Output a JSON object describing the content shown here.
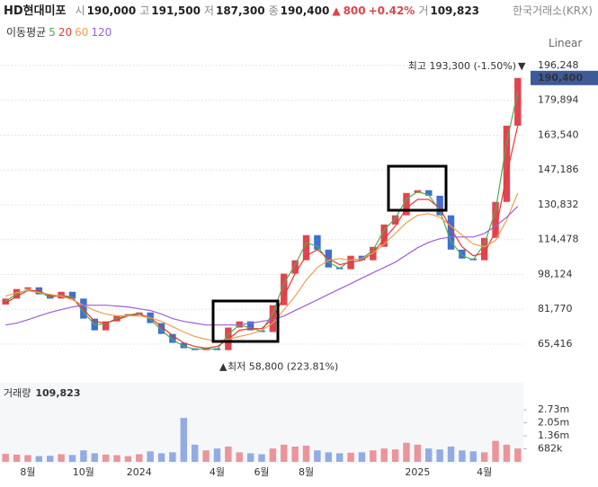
{
  "header": {
    "name": "HD현대미포",
    "items": [
      {
        "label": "시",
        "value": "190,000"
      },
      {
        "label": "고",
        "value": "191,500"
      },
      {
        "label": "저",
        "value": "187,300"
      },
      {
        "label": "종",
        "value": "190,400"
      }
    ],
    "change_arrow": "▲",
    "change": "800",
    "change_pct": "+0.42%",
    "volume_label": "거",
    "volume": "109,823",
    "exchange": "한국거래소(KRX)",
    "ma_title": "이동평균",
    "scale": "Linear"
  },
  "chart_data": [
    {
      "type": "candlestick",
      "categories": [
        null,
        null,
        "8월",
        null,
        null,
        null,
        null,
        "10월",
        null,
        null,
        null,
        null,
        "2024",
        null,
        null,
        null,
        null,
        null,
        null,
        "4월",
        null,
        null,
        null,
        "6월",
        null,
        null,
        null,
        "8월",
        null,
        null,
        null,
        null,
        null,
        null,
        null,
        null,
        null,
        "2025",
        null,
        null,
        null,
        null,
        null,
        "4월",
        null,
        null,
        null
      ],
      "open": [
        84000,
        86800,
        91300,
        92100,
        88800,
        86800,
        90000,
        86800,
        77400,
        71900,
        76100,
        78700,
        79500,
        80300,
        75300,
        70200,
        66000,
        63500,
        62600,
        63500,
        62600,
        73200,
        76100,
        71900,
        71100,
        83700,
        98500,
        104800,
        116600,
        109800,
        101400,
        100600,
        106900,
        104800,
        111100,
        121600,
        125900,
        136400,
        137700,
        135100,
        125900,
        109800,
        105600,
        104800,
        115300,
        132200,
        168000
      ],
      "close": [
        86800,
        91300,
        92100,
        88800,
        86800,
        90000,
        86800,
        77400,
        71900,
        76100,
        78700,
        79500,
        80300,
        75300,
        70200,
        66000,
        63500,
        62600,
        63500,
        62600,
        73200,
        76100,
        71900,
        71100,
        83700,
        98500,
        104800,
        116600,
        109800,
        101400,
        100600,
        106900,
        104800,
        111100,
        121600,
        125900,
        136400,
        137700,
        135100,
        125900,
        109800,
        105600,
        104800,
        115300,
        132200,
        168000,
        190400
      ],
      "up_color": "#e0454f",
      "down_color": "#3f6fd1",
      "series": [
        {
          "name": "5",
          "color": "#4caf50",
          "values": [
            85500,
            89000,
            91000,
            90000,
            87500,
            88500,
            87500,
            80500,
            74500,
            75000,
            77500,
            79000,
            80000,
            77000,
            72000,
            67500,
            64500,
            63000,
            63200,
            63000,
            70000,
            74500,
            73000,
            71500,
            80000,
            94000,
            102500,
            113000,
            111500,
            104000,
            101000,
            105000,
            105500,
            109500,
            119000,
            124500,
            133500,
            137000,
            135500,
            128000,
            113500,
            107000,
            105000,
            112500,
            128000,
            160000,
            184000
          ]
        },
        {
          "name": "20",
          "color": "#e53935",
          "values": [
            84600,
            87900,
            90500,
            90500,
            87900,
            87900,
            87100,
            81600,
            76100,
            75300,
            76900,
            78700,
            79500,
            77800,
            73600,
            69400,
            66000,
            64300,
            63500,
            64300,
            67700,
            71900,
            72700,
            72700,
            77400,
            87900,
            98500,
            106900,
            109800,
            105600,
            102700,
            103900,
            104800,
            108200,
            114900,
            120800,
            129300,
            133400,
            133400,
            129300,
            119500,
            111100,
            106900,
            108200,
            118300,
            144800,
            168000
          ]
        },
        {
          "name": "60",
          "color": "#f0a04b",
          "values": [
            88000,
            89600,
            90500,
            89600,
            88800,
            87900,
            86200,
            83700,
            81200,
            79500,
            78700,
            78700,
            78700,
            77800,
            76100,
            73600,
            71100,
            69000,
            67700,
            66800,
            67700,
            69000,
            70200,
            71900,
            75300,
            81600,
            87900,
            95500,
            101400,
            104800,
            105600,
            104800,
            105600,
            108200,
            112400,
            117400,
            122500,
            125900,
            126700,
            125000,
            120800,
            116600,
            112400,
            111100,
            114000,
            123700,
            136400
          ]
        },
        {
          "name": "120",
          "color": "#9c5fd6",
          "values": [
            74400,
            75300,
            76900,
            78600,
            80300,
            81600,
            82900,
            83700,
            83700,
            83700,
            83300,
            82900,
            82000,
            81200,
            79500,
            77400,
            76100,
            75300,
            74400,
            74400,
            74400,
            74400,
            75300,
            76100,
            76900,
            78600,
            81200,
            83700,
            86200,
            88800,
            91300,
            93800,
            96400,
            98900,
            101400,
            103900,
            107300,
            110700,
            113200,
            114900,
            115700,
            115700,
            115700,
            117400,
            120800,
            125000,
            130100
          ]
        }
      ],
      "ylim": [
        49800,
        201700
      ],
      "yticks": [
        {
          "value": 65416,
          "label": "65,416"
        },
        {
          "value": 81770,
          "label": "81,770"
        },
        {
          "value": 98124,
          "label": "98,124"
        },
        {
          "value": 114478,
          "label": "114,478"
        },
        {
          "value": 130832,
          "label": "130,832"
        },
        {
          "value": 147186,
          "label": "147,186"
        },
        {
          "value": 163540,
          "label": "163,540"
        },
        {
          "value": 179894,
          "label": "179,894"
        },
        {
          "value": 196248,
          "label": "196,248"
        }
      ],
      "grid": true,
      "last_price": {
        "value": 190400,
        "label": "190,400",
        "color": "#3d5a99"
      },
      "annotations": [
        {
          "text": "최고 193,300 (-1.50%)",
          "value": 193300,
          "marker": "▼"
        },
        {
          "text": "최저 58,800 (223.81%)",
          "value": 58800,
          "marker": "▲"
        }
      ]
    },
    {
      "type": "bar",
      "title": "거래량",
      "title_value": "109,823",
      "values": [
        420000,
        380000,
        350000,
        300000,
        320000,
        400000,
        360000,
        600000,
        450000,
        380000,
        350000,
        300000,
        400000,
        550000,
        450000,
        500000,
        2300000,
        900000,
        600000,
        700000,
        800000,
        500000,
        450000,
        400000,
        700000,
        900000,
        800000,
        850000,
        600000,
        500000,
        450000,
        480000,
        500000,
        600000,
        700000,
        650000,
        1000000,
        900000,
        700000,
        650000,
        800000,
        600000,
        550000,
        500000,
        1100000,
        900000,
        700000
      ],
      "ylim": [
        0,
        3860000
      ],
      "yticks": [
        {
          "value": 682000,
          "label": "682k"
        },
        {
          "value": 1364000,
          "label": "1.36m"
        },
        {
          "value": 2046000,
          "label": "2.05m"
        },
        {
          "value": 2728000,
          "label": "2.73m"
        }
      ]
    }
  ]
}
